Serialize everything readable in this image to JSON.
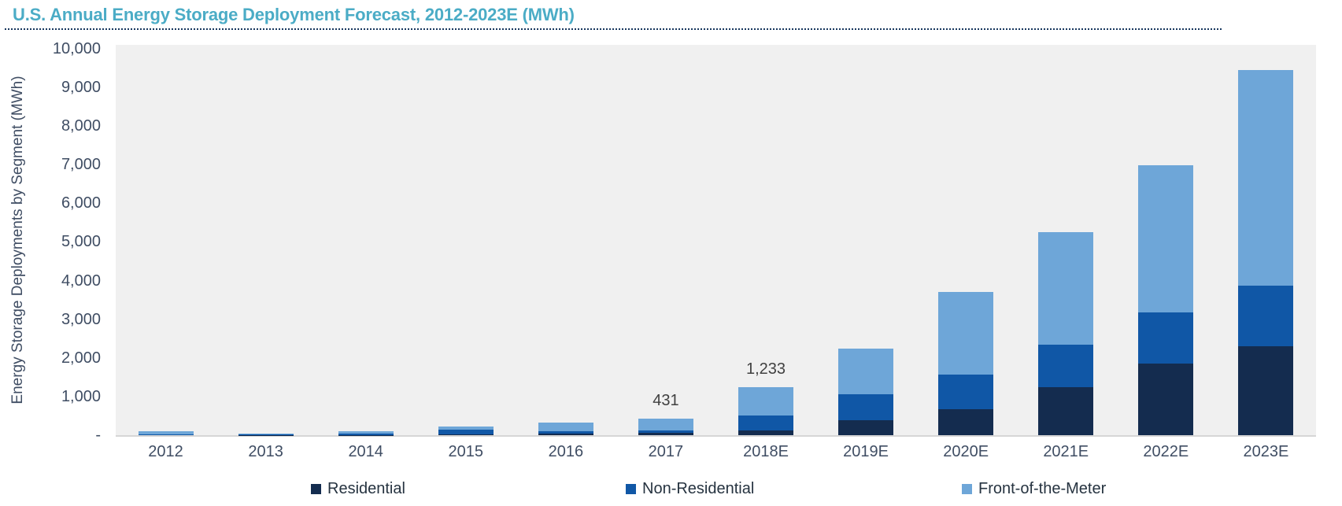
{
  "title": "U.S. Annual Energy Storage Deployment Forecast, 2012-2023E (MWh)",
  "y_axis": {
    "title": "Energy Storage Deployments by Segment (MWh)",
    "ticks": [
      {
        "label": "10,000",
        "value": 10000
      },
      {
        "label": "9,000",
        "value": 9000
      },
      {
        "label": "8,000",
        "value": 8000
      },
      {
        "label": "7,000",
        "value": 7000
      },
      {
        "label": "6,000",
        "value": 6000
      },
      {
        "label": "5,000",
        "value": 5000
      },
      {
        "label": "4,000",
        "value": 4000
      },
      {
        "label": "3,000",
        "value": 3000
      },
      {
        "label": "2,000",
        "value": 2000
      },
      {
        "label": "1,000",
        "value": 1000
      },
      {
        "label": "-",
        "value": 0
      }
    ]
  },
  "chart_data": {
    "type": "bar",
    "stacked": true,
    "grid": false,
    "legend_position": "bottom",
    "ylim": [
      0,
      10000
    ],
    "categories": [
      "2012",
      "2013",
      "2014",
      "2015",
      "2016",
      "2017",
      "2018E",
      "2019E",
      "2020E",
      "2021E",
      "2022E",
      "2023E"
    ],
    "series": [
      {
        "name": "Residential",
        "color": "#142c4f",
        "values": [
          0,
          5,
          10,
          25,
          40,
          60,
          125,
          390,
          670,
          1250,
          1850,
          2310
        ]
      },
      {
        "name": "Non-Residential",
        "color": "#1057a6",
        "values": [
          15,
          10,
          25,
          115,
          55,
          60,
          385,
          670,
          900,
          1100,
          1330,
          1550
        ]
      },
      {
        "name": "Front-of-the-Meter",
        "color": "#6ea6d8",
        "values": [
          95,
          30,
          75,
          80,
          240,
          311,
          723,
          1190,
          2140,
          2900,
          3800,
          5590
        ]
      }
    ],
    "totals": [
      110,
      45,
      110,
      220,
      335,
      431,
      1233,
      2250,
      3710,
      5250,
      6980,
      9450
    ],
    "data_labels": [
      {
        "category": "2017",
        "text": "431"
      },
      {
        "category": "2018E",
        "text": "1,233"
      }
    ]
  },
  "colors": {
    "title": "#4bacc6",
    "divider": "#17365d",
    "plot_background": "#f0f0f0",
    "axis_text": "#3f4d63",
    "data_label_text": "#404040"
  }
}
